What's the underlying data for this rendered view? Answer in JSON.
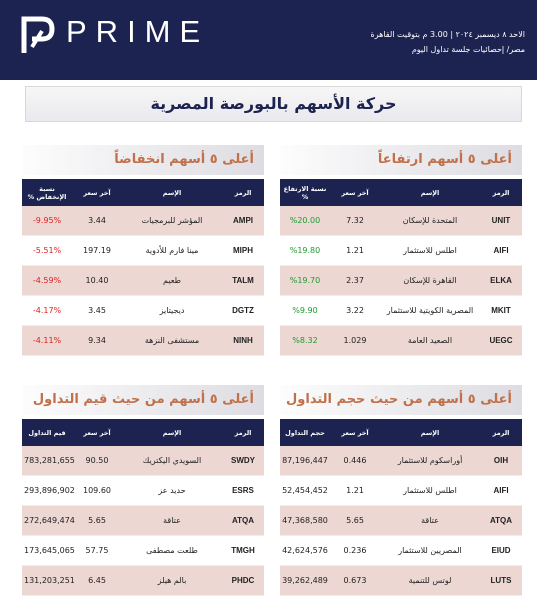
{
  "header": {
    "brand": "PRIME",
    "date_line": "الاحد ٨ ديسمبر ٢٠٢٤ | 3.00 م بتوقيت القاهرة",
    "subtitle": "مصر/ إحصائيات جلسة تداول اليوم"
  },
  "title": "حركة الأسهم بالبورصة المصرية",
  "tables": [
    {
      "title": "أعلى ٥ أسهم ارتفاعاً",
      "columns": [
        "الرمز",
        "الإسم",
        "آخر سعر",
        "نسبة الارتفاع %"
      ],
      "rows": [
        [
          "UNIT",
          "المتحدة للإسكان",
          "7.32",
          "%20.00"
        ],
        [
          "AIFI",
          "اطلس للاستثمار",
          "1.21",
          "%19.80"
        ],
        [
          "ELKA",
          "القاهرة للإسكان",
          "2.37",
          "%19.70"
        ],
        [
          "MKIT",
          "المصرية الكويتية للاستثمار",
          "3.22",
          "%9.90"
        ],
        [
          "UEGC",
          "الصعيد العامة",
          "1.029",
          "%8.32"
        ]
      ]
    },
    {
      "title": "أعلى ٥ أسهم انخفاضاً",
      "columns": [
        "الرمز",
        "الإسم",
        "آخر سعر",
        "نسبة الإنخفاض %"
      ],
      "rows": [
        [
          "AMPI",
          "المؤشر للبرمجيات",
          "3.44",
          "-9.95%"
        ],
        [
          "MIPH",
          "مينا فارم للأدوية",
          "197.19",
          "-5.51%"
        ],
        [
          "TALM",
          "طعيم",
          "10.40",
          "-4.59%"
        ],
        [
          "DGTZ",
          "ديجيتايز",
          "3.45",
          "-4.17%"
        ],
        [
          "NINH",
          "مستشفى النزهة",
          "9.34",
          "-4.11%"
        ]
      ]
    },
    {
      "title": "أعلى ٥ أسهم من حيث حجم التداول",
      "columns": [
        "الرمز",
        "الإسم",
        "آخر سعر",
        "حجم التداول"
      ],
      "rows": [
        [
          "OIH",
          "أوراسكوم للاستثمار",
          "0.446",
          "87,196,447"
        ],
        [
          "AIFI",
          "اطلس للاستثمار",
          "1.21",
          "52,454,452"
        ],
        [
          "ATQA",
          "عتاقة",
          "5.65",
          "47,368,580"
        ],
        [
          "EIUD",
          "المصريين للاستثمار",
          "0.236",
          "42,624,576"
        ],
        [
          "LUTS",
          "لوتس للتنمية",
          "0.673",
          "39,262,489"
        ]
      ]
    },
    {
      "title": "أعلى ٥ أسهم من حيث قيم التداول",
      "columns": [
        "الرمز",
        "الإسم",
        "آخر سعر",
        "قيم التداول"
      ],
      "rows": [
        [
          "SWDY",
          "السويدي اليكتريك",
          "90.50",
          "783,281,655"
        ],
        [
          "ESRS",
          "حديد عز",
          "109.60",
          "293,896,902"
        ],
        [
          "ATQA",
          "عتاقة",
          "5.65",
          "272,649,474"
        ],
        [
          "TMGH",
          "طلعت مصطفى",
          "57.75",
          "173,645,065"
        ],
        [
          "PHDC",
          "بالم هيلز",
          "6.45",
          "131,203,251"
        ]
      ]
    }
  ]
}
